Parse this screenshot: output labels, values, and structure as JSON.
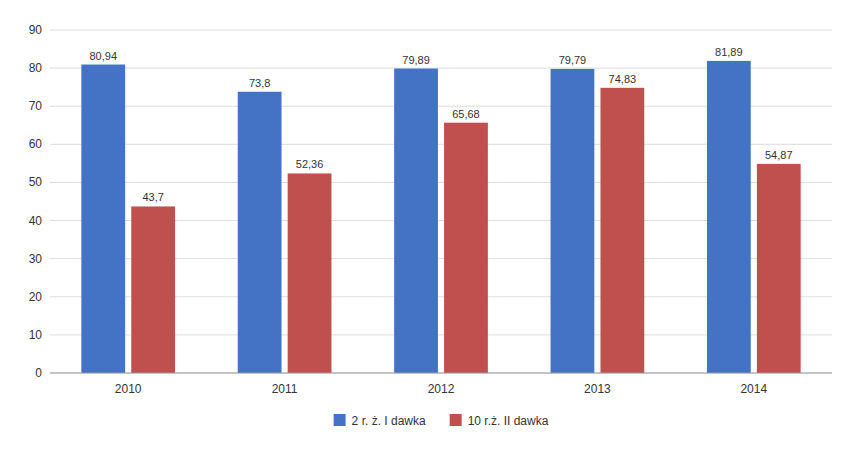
{
  "chart_data": {
    "type": "bar",
    "categories": [
      "2010",
      "2011",
      "2012",
      "2013",
      "2014"
    ],
    "series": [
      {
        "name": "2 r. ż. I dawka",
        "color": "#4472C4",
        "values": [
          80.94,
          73.8,
          79.89,
          79.79,
          81.89
        ],
        "value_labels": [
          "80,94",
          "73,8",
          "79,89",
          "79,79",
          "81,89"
        ]
      },
      {
        "name": "10 r.ż. II dawka",
        "color": "#C0504D",
        "values": [
          43.7,
          52.36,
          65.68,
          74.83,
          54.87
        ],
        "value_labels": [
          "43,7",
          "52,36",
          "65,68",
          "74,83",
          "54,87"
        ]
      }
    ],
    "ylim": [
      0,
      90
    ],
    "yticks": [
      0,
      10,
      20,
      30,
      40,
      50,
      60,
      70,
      80,
      90
    ],
    "grid": true,
    "data_labels": true,
    "legend": "bottom"
  }
}
